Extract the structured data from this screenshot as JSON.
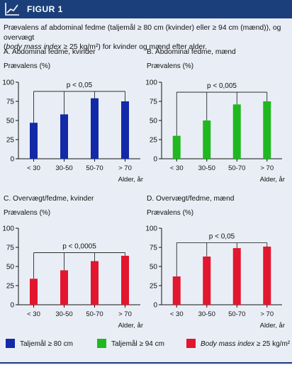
{
  "header": {
    "title": "FIGUR 1",
    "logo_icon": "chart-line-icon"
  },
  "caption": {
    "line1": "Prævalens af abdominal fedme (taljemål ≥ 80 cm (kvinder) eller ≥ 94 cm (mænd)), og overvægt",
    "line2_italic": "body mass index",
    "line2_rest": " ≥ 25 kg/m²) for kvinder og mænd efter alder.",
    "line2_open": "("
  },
  "colors": {
    "header": "#1b3f7a",
    "background": "#e9eef6",
    "blue": "#1229a8",
    "green": "#1fb81f",
    "red": "#e2162e"
  },
  "chart_data": [
    {
      "type": "bar",
      "panel": "A. Abdominal fedme, kvinder",
      "ylabel": "Prævalens (%)",
      "xlabel": "Alder, år",
      "ylim": [
        0,
        100
      ],
      "yticks": [
        "0",
        "25",
        "50",
        "75",
        "100"
      ],
      "categories": [
        "< 30",
        "30-50",
        "50-70",
        "> 70"
      ],
      "values": [
        47,
        58,
        79,
        75
      ],
      "color": "#1229a8",
      "bracket": {
        "label": "p < 0,05",
        "height": 88
      }
    },
    {
      "type": "bar",
      "panel": "B. Abdominal fedme, mænd",
      "ylabel": "Prævalens (%)",
      "xlabel": "Alder, år",
      "ylim": [
        0,
        100
      ],
      "yticks": [
        "0",
        "25",
        "50",
        "75",
        "100"
      ],
      "categories": [
        "< 30",
        "30-50",
        "50-70",
        "> 70"
      ],
      "values": [
        30,
        50,
        71,
        75
      ],
      "color": "#1fb81f",
      "bracket": {
        "label": "p < 0,005",
        "height": 87
      }
    },
    {
      "type": "bar",
      "panel": "C. Overvægt/fedme, kvinder",
      "ylabel": "Prævalens (%)",
      "xlabel": "Alder, år",
      "ylim": [
        0,
        100
      ],
      "yticks": [
        "0",
        "25",
        "50",
        "75",
        "100"
      ],
      "categories": [
        "< 30",
        "30-50",
        "50-70",
        "> 70"
      ],
      "values": [
        34,
        45,
        57,
        64
      ],
      "color": "#e2162e",
      "bracket": {
        "label": "p < 0,0005",
        "height": 68
      }
    },
    {
      "type": "bar",
      "panel": "D. Overvægt/fedme, mænd",
      "ylabel": "Prævalens (%)",
      "xlabel": "Alder, år",
      "ylim": [
        0,
        100
      ],
      "yticks": [
        "0",
        "25",
        "50",
        "75",
        "100"
      ],
      "categories": [
        "< 30",
        "30-50",
        "50-70",
        "> 70"
      ],
      "values": [
        37,
        63,
        74,
        76
      ],
      "color": "#e2162e",
      "bracket": {
        "label": "p < 0,05",
        "height": 81
      }
    }
  ],
  "legend": [
    {
      "label": "Taljemål ≥ 80 cm",
      "color": "#1229a8",
      "italic": ""
    },
    {
      "label": "Taljemål ≥ 94 cm",
      "color": "#1fb81f",
      "italic": ""
    },
    {
      "label": " ≥ 25 kg/m²",
      "color": "#e2162e",
      "italic": "Body mass index"
    }
  ]
}
